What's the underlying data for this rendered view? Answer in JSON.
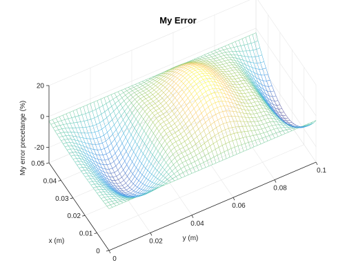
{
  "chart_data": {
    "type": "surface",
    "title": "My Error",
    "xlabel": "x (m)",
    "ylabel": "y (m)",
    "zlabel": "My error precetange (%)",
    "xlim": [
      0,
      0.05
    ],
    "ylim": [
      0,
      0.1
    ],
    "zlim": [
      -30,
      20
    ],
    "x_ticks": [
      "0",
      "0.01",
      "0.02",
      "0.03",
      "0.04",
      "0.05"
    ],
    "y_ticks": [
      "0",
      "0.02",
      "0.04",
      "0.06",
      "0.08",
      "0.1"
    ],
    "z_ticks": [
      "20",
      "0",
      "-20"
    ],
    "grid": true,
    "colormap": "parula",
    "surface_samples": {
      "y_values": [
        0,
        0.02,
        0.04,
        0.06,
        0.08,
        0.1
      ],
      "z_at_x_0.025": [
        -5,
        -26,
        4,
        18,
        2,
        -28
      ],
      "z_at_edges": [
        -3,
        -3,
        -3,
        -3,
        -3,
        -3
      ]
    }
  }
}
